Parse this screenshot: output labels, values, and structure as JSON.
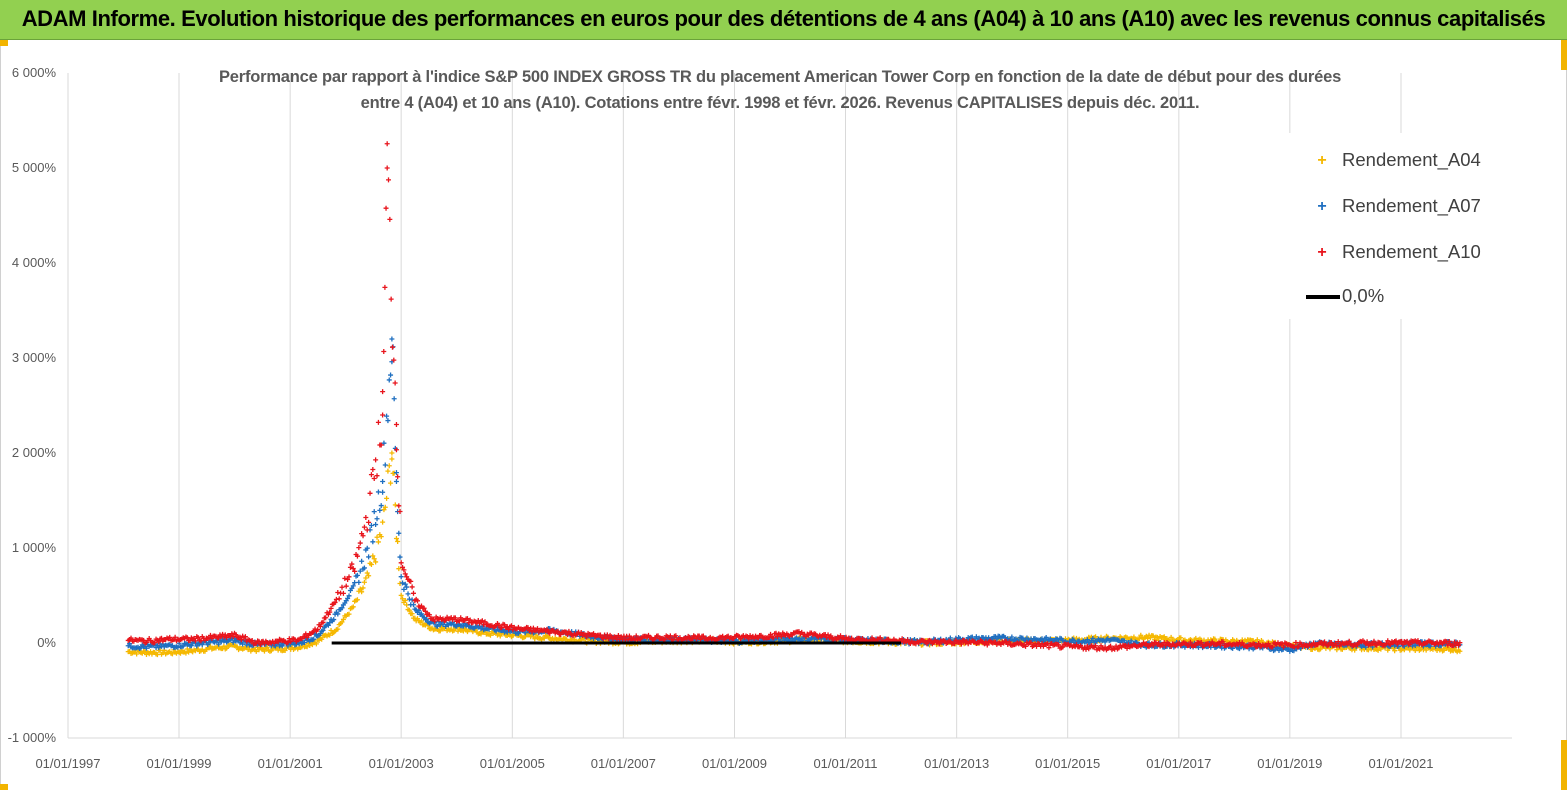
{
  "banner": {
    "title": "ADAM Informe. Evolution historique des performances en euros pour des détentions de 4 ans (A04) à 10 ans (A10) avec les revenus connus capitalisés"
  },
  "colors": {
    "banner_bg": "#92d050",
    "accent_corner": "#f2b400",
    "a04": "#f5b800",
    "a07": "#1f6fc0",
    "a10": "#e8141c",
    "zero_line": "#000000",
    "grid": "#d9d9d9",
    "text": "#595959"
  },
  "chart_data": {
    "type": "scatter",
    "title_lines": [
      "Performance par rapport à l'indice S&P 500 INDEX GROSS TR  du placement American Tower Corp en fonction de la date de début pour des durées",
      "entre 4 (A04) et 10 ans (A10). Cotations entre févr. 1998 et févr. 2026. Revenus CAPITALISES depuis déc. 2011."
    ],
    "y_unit": "percent",
    "ylim": [
      -1000,
      6000
    ],
    "y_ticks": [
      -1000,
      0,
      1000,
      2000,
      3000,
      4000,
      5000,
      6000
    ],
    "y_tick_labels": [
      "-1 000%",
      "0%",
      "1 000%",
      "2 000%",
      "3 000%",
      "4 000%",
      "5 000%",
      "6 000%"
    ],
    "xlim": [
      "1997-01-01",
      "2023-01-01"
    ],
    "x_ticks": [
      "1997-01-01",
      "1999-01-01",
      "2001-01-01",
      "2003-01-01",
      "2005-01-01",
      "2007-01-01",
      "2009-01-01",
      "2011-01-01",
      "2013-01-01",
      "2015-01-01",
      "2017-01-01",
      "2019-01-01",
      "2021-01-01"
    ],
    "x_tick_labels": [
      "01/01/1997",
      "01/01/1999",
      "01/01/2001",
      "01/01/2003",
      "01/01/2005",
      "01/01/2007",
      "01/01/2009",
      "01/01/2011",
      "01/01/2013",
      "01/01/2015",
      "01/01/2017",
      "01/01/2019",
      "01/01/2021"
    ],
    "grid": "vertical",
    "legend_position": "top-right",
    "legend": [
      "Rendement_A04",
      "Rendement_A07",
      "Rendement_A10",
      "0,0%"
    ],
    "series": [
      {
        "name": "Rendement_A04",
        "marker": "plus",
        "points": [
          [
            "1998-02-01",
            -90
          ],
          [
            "1998-06-01",
            -100
          ],
          [
            "1998-11-01",
            -100
          ],
          [
            "1999-04-01",
            -80
          ],
          [
            "1999-09-01",
            -50
          ],
          [
            "2000-01-01",
            -40
          ],
          [
            "2000-06-01",
            -70
          ],
          [
            "2000-11-01",
            -60
          ],
          [
            "2001-03-01",
            -40
          ],
          [
            "2001-07-01",
            20
          ],
          [
            "2001-11-01",
            150
          ],
          [
            "2002-03-01",
            400
          ],
          [
            "2002-06-01",
            700
          ],
          [
            "2002-09-01",
            1200
          ],
          [
            "2002-11-01",
            2000
          ],
          [
            "2002-12-01",
            1200
          ],
          [
            "2003-01-01",
            500
          ],
          [
            "2003-04-01",
            250
          ],
          [
            "2003-08-01",
            150
          ],
          [
            "2004-01-01",
            150
          ],
          [
            "2004-08-01",
            100
          ],
          [
            "2005-02-01",
            80
          ],
          [
            "2005-10-01",
            50
          ],
          [
            "2006-06-01",
            20
          ],
          [
            "2007-02-01",
            10
          ],
          [
            "2007-10-01",
            20
          ],
          [
            "2008-06-01",
            30
          ],
          [
            "2009-02-01",
            10
          ],
          [
            "2009-10-01",
            20
          ],
          [
            "2010-06-01",
            40
          ],
          [
            "2011-02-01",
            20
          ],
          [
            "2011-10-01",
            10
          ],
          [
            "2012-06-01",
            0
          ],
          [
            "2013-02-01",
            10
          ],
          [
            "2013-10-01",
            20
          ],
          [
            "2014-06-01",
            20
          ],
          [
            "2015-02-01",
            30
          ],
          [
            "2015-10-01",
            50
          ],
          [
            "2016-06-01",
            60
          ],
          [
            "2017-02-01",
            30
          ],
          [
            "2017-10-01",
            20
          ],
          [
            "2018-06-01",
            10
          ],
          [
            "2019-02-01",
            -40
          ],
          [
            "2019-10-01",
            -50
          ],
          [
            "2020-06-01",
            -50
          ],
          [
            "2021-02-01",
            -60
          ],
          [
            "2021-10-01",
            -60
          ],
          [
            "2022-02-01",
            -70
          ]
        ]
      },
      {
        "name": "Rendement_A07",
        "marker": "plus",
        "points": [
          [
            "1998-02-01",
            -30
          ],
          [
            "1998-06-01",
            -40
          ],
          [
            "1998-11-01",
            -30
          ],
          [
            "1999-04-01",
            -10
          ],
          [
            "1999-09-01",
            10
          ],
          [
            "2000-01-01",
            30
          ],
          [
            "2000-06-01",
            -20
          ],
          [
            "2000-11-01",
            -10
          ],
          [
            "2001-03-01",
            0
          ],
          [
            "2001-07-01",
            80
          ],
          [
            "2001-11-01",
            300
          ],
          [
            "2002-03-01",
            600
          ],
          [
            "2002-06-01",
            1000
          ],
          [
            "2002-09-01",
            1700
          ],
          [
            "2002-11-01",
            3200
          ],
          [
            "2002-12-01",
            1700
          ],
          [
            "2003-01-01",
            700
          ],
          [
            "2003-04-01",
            350
          ],
          [
            "2003-08-01",
            200
          ],
          [
            "2004-01-01",
            200
          ],
          [
            "2004-08-01",
            150
          ],
          [
            "2005-02-01",
            120
          ],
          [
            "2005-10-01",
            130
          ],
          [
            "2006-06-01",
            70
          ],
          [
            "2007-02-01",
            40
          ],
          [
            "2007-10-01",
            40
          ],
          [
            "2008-06-01",
            30
          ],
          [
            "2009-02-01",
            20
          ],
          [
            "2009-10-01",
            40
          ],
          [
            "2010-06-01",
            50
          ],
          [
            "2011-02-01",
            30
          ],
          [
            "2011-10-01",
            20
          ],
          [
            "2012-06-01",
            10
          ],
          [
            "2013-02-01",
            40
          ],
          [
            "2013-10-01",
            50
          ],
          [
            "2014-06-01",
            40
          ],
          [
            "2015-02-01",
            20
          ],
          [
            "2015-10-01",
            30
          ],
          [
            "2016-06-01",
            -20
          ],
          [
            "2017-02-01",
            -20
          ],
          [
            "2017-10-01",
            -30
          ],
          [
            "2018-06-01",
            -40
          ],
          [
            "2019-01-01",
            -70
          ],
          [
            "2019-06-01",
            -10
          ],
          [
            "2020-06-01",
            -20
          ],
          [
            "2021-02-01",
            -10
          ],
          [
            "2021-10-01",
            -10
          ],
          [
            "2022-02-01",
            0
          ]
        ]
      },
      {
        "name": "Rendement_A10",
        "marker": "plus",
        "points": [
          [
            "1998-02-01",
            30
          ],
          [
            "1998-06-01",
            20
          ],
          [
            "1998-11-01",
            40
          ],
          [
            "1999-04-01",
            40
          ],
          [
            "1999-09-01",
            60
          ],
          [
            "2000-01-01",
            80
          ],
          [
            "2000-06-01",
            0
          ],
          [
            "2000-11-01",
            20
          ],
          [
            "2001-03-01",
            30
          ],
          [
            "2001-07-01",
            150
          ],
          [
            "2001-11-01",
            450
          ],
          [
            "2002-03-01",
            800
          ],
          [
            "2002-06-01",
            1400
          ],
          [
            "2002-09-01",
            2400
          ],
          [
            "2002-10-01",
            5000
          ],
          [
            "2002-12-01",
            2300
          ],
          [
            "2003-01-01",
            900
          ],
          [
            "2003-04-01",
            450
          ],
          [
            "2003-08-01",
            250
          ],
          [
            "2004-01-01",
            250
          ],
          [
            "2004-08-01",
            200
          ],
          [
            "2005-02-01",
            150
          ],
          [
            "2005-10-01",
            120
          ],
          [
            "2006-06-01",
            80
          ],
          [
            "2007-02-01",
            50
          ],
          [
            "2007-10-01",
            60
          ],
          [
            "2008-06-01",
            50
          ],
          [
            "2009-02-01",
            60
          ],
          [
            "2009-10-01",
            80
          ],
          [
            "2010-03-01",
            100
          ],
          [
            "2011-02-01",
            40
          ],
          [
            "2011-10-01",
            30
          ],
          [
            "2012-06-01",
            10
          ],
          [
            "2013-02-01",
            10
          ],
          [
            "2013-10-01",
            0
          ],
          [
            "2014-06-01",
            -20
          ],
          [
            "2015-02-01",
            -40
          ],
          [
            "2015-10-01",
            -50
          ],
          [
            "2016-06-01",
            -20
          ],
          [
            "2017-02-01",
            -10
          ],
          [
            "2017-10-01",
            -10
          ],
          [
            "2018-06-01",
            -20
          ],
          [
            "2019-02-01",
            -20
          ],
          [
            "2019-10-01",
            -10
          ],
          [
            "2020-06-01",
            0
          ],
          [
            "2021-02-01",
            0
          ],
          [
            "2021-10-01",
            0
          ],
          [
            "2022-02-01",
            -10
          ]
        ]
      }
    ],
    "reference_line": {
      "name": "0,0%",
      "y": 0,
      "x_start": "2001-10-01",
      "x_end": "2012-01-01"
    }
  }
}
